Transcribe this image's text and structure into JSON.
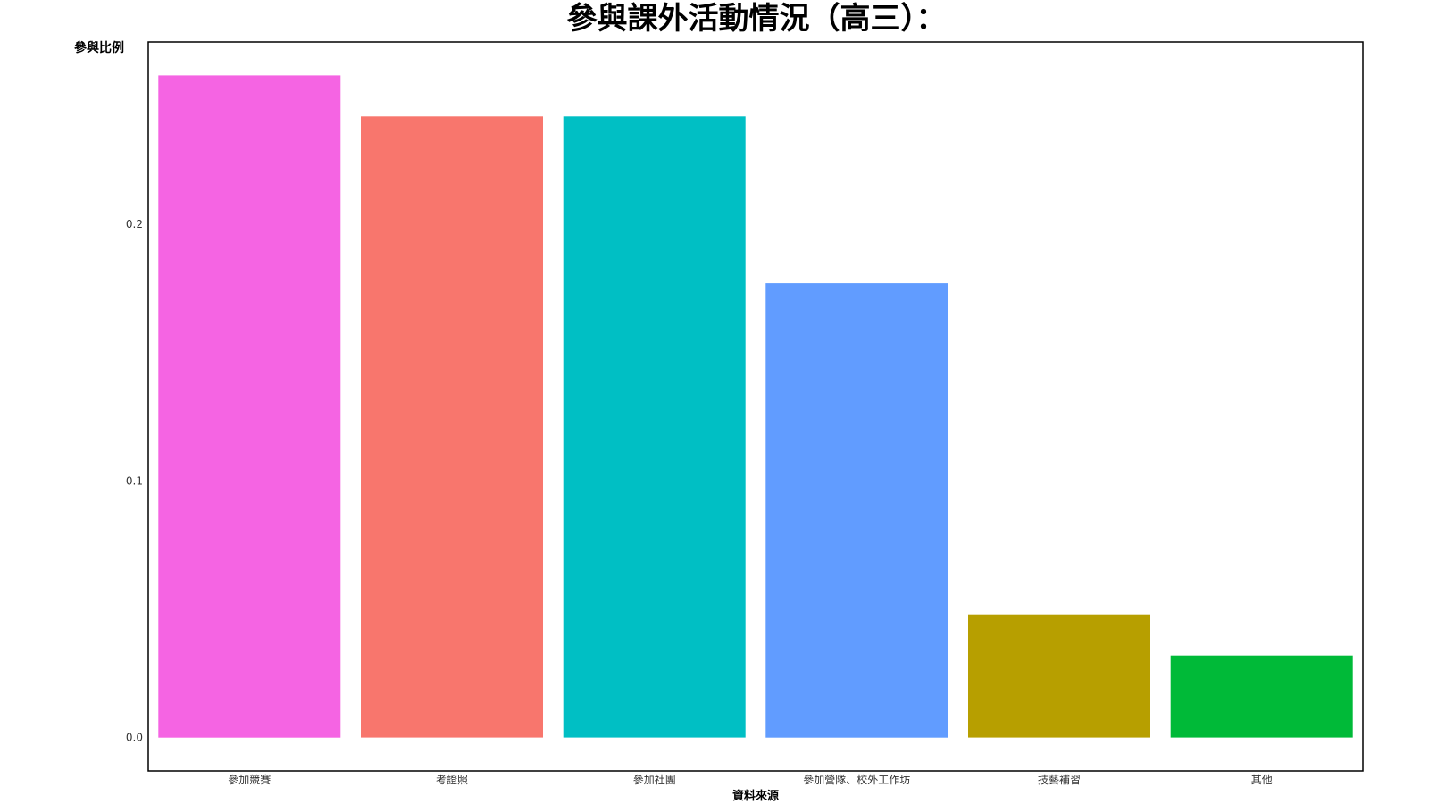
{
  "chart_data": {
    "type": "bar",
    "title": "參與課外活動情況（高三）：",
    "xlabel": "資料來源",
    "ylabel": "參與比例",
    "categories": [
      "參加競賽",
      "考證照",
      "參加社團",
      "參加營隊、校外工作坊",
      "技藝補習",
      "其他"
    ],
    "values": [
      0.258,
      0.242,
      0.242,
      0.177,
      0.048,
      0.032
    ],
    "colors": [
      "#F564E3",
      "#F8766D",
      "#00BFC4",
      "#619CFF",
      "#B79F00",
      "#00BA38"
    ],
    "yticks": [
      "0.0",
      "0.1",
      "0.2"
    ],
    "ytick_values": [
      0.0,
      0.1,
      0.2
    ],
    "ylim": [
      -0.013,
      0.271
    ],
    "grid": false,
    "legend": "none"
  }
}
